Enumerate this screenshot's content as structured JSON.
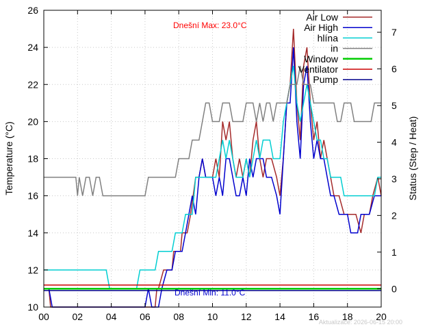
{
  "chart_data": {
    "type": "line",
    "xlabel": "",
    "ylabel_left": "Temperature (°C)",
    "ylabel_right": "Status (Step / Heat)",
    "ylim_left": [
      10,
      26
    ],
    "ylim_right": [
      -0.5,
      7.6
    ],
    "xlim_hours": [
      0,
      20
    ],
    "x_tick_labels": [
      "00",
      "02",
      "04",
      "06",
      "08",
      "10",
      "12",
      "14",
      "16",
      "18",
      "20"
    ],
    "y_left_tick_labels": [
      "10",
      "12",
      "14",
      "16",
      "18",
      "20",
      "22",
      "24",
      "26"
    ],
    "y_right_tick_labels": [
      "0",
      "1",
      "2",
      "3",
      "4",
      "5",
      "6",
      "7"
    ],
    "grid": true,
    "legend_position": "top-right",
    "annotations": {
      "max": "Dnešní Max: 23.0°C",
      "min": "Dnešní Min: 11.0°C",
      "updated": "Aktualizace: 2026-06-15 20:00"
    },
    "series": [
      {
        "name": "Air Low",
        "axis": "left",
        "color": "#a52a2a",
        "points": [
          [
            0,
            11
          ],
          [
            0.3,
            11
          ],
          [
            0.4,
            10
          ],
          [
            6.2,
            10
          ],
          [
            6.6,
            10
          ],
          [
            6.7,
            11
          ],
          [
            6.8,
            11
          ],
          [
            7.1,
            12
          ],
          [
            7.6,
            12
          ],
          [
            7.7,
            13
          ],
          [
            8.1,
            13
          ],
          [
            8.2,
            14
          ],
          [
            8.5,
            14
          ],
          [
            8.7,
            15
          ],
          [
            9.0,
            17
          ],
          [
            9.2,
            17
          ],
          [
            9.4,
            18
          ],
          [
            9.6,
            17
          ],
          [
            10.0,
            17
          ],
          [
            10.2,
            18
          ],
          [
            10.4,
            17
          ],
          [
            10.6,
            20
          ],
          [
            10.8,
            19
          ],
          [
            11.0,
            20
          ],
          [
            11.2,
            18
          ],
          [
            11.4,
            17
          ],
          [
            11.6,
            18
          ],
          [
            11.8,
            17
          ],
          [
            12.0,
            18
          ],
          [
            12.2,
            17
          ],
          [
            12.4,
            19
          ],
          [
            12.6,
            20
          ],
          [
            12.8,
            18
          ],
          [
            13.0,
            17
          ],
          [
            13.2,
            18
          ],
          [
            13.5,
            18
          ],
          [
            13.8,
            17
          ],
          [
            14.0,
            16
          ],
          [
            14.2,
            18
          ],
          [
            14.4,
            21
          ],
          [
            14.6,
            22
          ],
          [
            14.8,
            25
          ],
          [
            15.0,
            21
          ],
          [
            15.2,
            19
          ],
          [
            15.4,
            23
          ],
          [
            15.6,
            24
          ],
          [
            15.8,
            21
          ],
          [
            16.0,
            19
          ],
          [
            16.2,
            20
          ],
          [
            16.4,
            18
          ],
          [
            16.6,
            19
          ],
          [
            16.8,
            18
          ],
          [
            17.0,
            17
          ],
          [
            17.2,
            16
          ],
          [
            17.5,
            16
          ],
          [
            17.8,
            15
          ],
          [
            18.5,
            15
          ],
          [
            18.8,
            14
          ],
          [
            19.0,
            15
          ],
          [
            19.3,
            15
          ],
          [
            19.5,
            16
          ],
          [
            19.8,
            17
          ],
          [
            20.0,
            16
          ]
        ]
      },
      {
        "name": "Air High",
        "axis": "left",
        "color": "#0000cd",
        "points": [
          [
            0,
            11
          ],
          [
            0.3,
            11
          ],
          [
            0.5,
            10
          ],
          [
            6.0,
            10
          ],
          [
            6.2,
            11
          ],
          [
            6.4,
            10
          ],
          [
            6.8,
            10
          ],
          [
            7.0,
            11
          ],
          [
            7.3,
            12
          ],
          [
            7.6,
            12
          ],
          [
            7.8,
            13
          ],
          [
            8.2,
            13
          ],
          [
            8.4,
            14
          ],
          [
            8.6,
            15
          ],
          [
            8.8,
            16
          ],
          [
            9.0,
            15
          ],
          [
            9.2,
            17
          ],
          [
            9.4,
            18
          ],
          [
            9.6,
            17
          ],
          [
            10.0,
            17
          ],
          [
            10.2,
            16
          ],
          [
            10.4,
            17
          ],
          [
            10.6,
            16
          ],
          [
            10.8,
            18
          ],
          [
            11.0,
            18
          ],
          [
            11.2,
            17
          ],
          [
            11.4,
            16
          ],
          [
            11.6,
            16
          ],
          [
            11.8,
            17
          ],
          [
            12.0,
            16
          ],
          [
            12.2,
            18
          ],
          [
            12.4,
            17
          ],
          [
            12.6,
            18
          ],
          [
            13.0,
            18
          ],
          [
            13.2,
            17
          ],
          [
            13.5,
            17
          ],
          [
            13.8,
            16
          ],
          [
            14.0,
            15
          ],
          [
            14.2,
            18
          ],
          [
            14.4,
            21
          ],
          [
            14.6,
            21
          ],
          [
            14.8,
            24
          ],
          [
            15.0,
            20
          ],
          [
            15.2,
            18
          ],
          [
            15.4,
            22
          ],
          [
            15.6,
            23
          ],
          [
            15.8,
            20
          ],
          [
            16.0,
            18
          ],
          [
            16.2,
            19
          ],
          [
            16.4,
            18
          ],
          [
            16.6,
            18
          ],
          [
            16.8,
            17
          ],
          [
            17.0,
            16
          ],
          [
            17.2,
            16
          ],
          [
            17.5,
            15
          ],
          [
            18.0,
            15
          ],
          [
            18.2,
            14
          ],
          [
            18.6,
            14
          ],
          [
            18.8,
            15
          ],
          [
            19.0,
            15
          ],
          [
            19.3,
            15
          ],
          [
            19.6,
            16
          ],
          [
            20.0,
            16
          ]
        ]
      },
      {
        "name": "hlína",
        "axis": "left",
        "color": "#00ced1",
        "points": [
          [
            0,
            12
          ],
          [
            3.7,
            12
          ],
          [
            3.9,
            11
          ],
          [
            5.5,
            11
          ],
          [
            5.7,
            12
          ],
          [
            6.6,
            12
          ],
          [
            6.8,
            13
          ],
          [
            7.6,
            13
          ],
          [
            7.8,
            14
          ],
          [
            8.2,
            14
          ],
          [
            8.4,
            15
          ],
          [
            8.8,
            15
          ],
          [
            9.0,
            17
          ],
          [
            9.6,
            17
          ],
          [
            10.2,
            17
          ],
          [
            10.4,
            18
          ],
          [
            10.6,
            19
          ],
          [
            10.8,
            18
          ],
          [
            11.0,
            19
          ],
          [
            11.2,
            18
          ],
          [
            11.4,
            17
          ],
          [
            11.8,
            17
          ],
          [
            12.0,
            18
          ],
          [
            12.2,
            17
          ],
          [
            12.4,
            18
          ],
          [
            12.6,
            19
          ],
          [
            12.8,
            18
          ],
          [
            13.0,
            19
          ],
          [
            13.4,
            19
          ],
          [
            13.6,
            18
          ],
          [
            13.8,
            18
          ],
          [
            14.0,
            18
          ],
          [
            14.2,
            20
          ],
          [
            14.4,
            21
          ],
          [
            14.6,
            22
          ],
          [
            14.8,
            23
          ],
          [
            15.0,
            21
          ],
          [
            15.2,
            20
          ],
          [
            15.4,
            21
          ],
          [
            15.6,
            22
          ],
          [
            15.8,
            21
          ],
          [
            16.0,
            20
          ],
          [
            16.2,
            19
          ],
          [
            16.4,
            19
          ],
          [
            16.6,
            18
          ],
          [
            16.8,
            18
          ],
          [
            17.0,
            17
          ],
          [
            17.6,
            17
          ],
          [
            17.8,
            16
          ],
          [
            19.0,
            16
          ],
          [
            19.6,
            16
          ],
          [
            19.8,
            17
          ],
          [
            20.0,
            17
          ]
        ]
      },
      {
        "name": "in",
        "axis": "left",
        "color": "#808080",
        "points": [
          [
            0,
            17
          ],
          [
            1.9,
            17
          ],
          [
            2.0,
            16
          ],
          [
            2.1,
            17
          ],
          [
            2.3,
            16
          ],
          [
            2.5,
            17
          ],
          [
            2.7,
            17
          ],
          [
            2.9,
            16
          ],
          [
            3.1,
            17
          ],
          [
            3.3,
            17
          ],
          [
            3.5,
            16
          ],
          [
            6.0,
            16
          ],
          [
            6.2,
            17
          ],
          [
            7.8,
            17
          ],
          [
            8.0,
            18
          ],
          [
            8.6,
            18
          ],
          [
            8.8,
            19
          ],
          [
            9.2,
            19
          ],
          [
            9.4,
            20
          ],
          [
            9.6,
            21
          ],
          [
            9.8,
            21
          ],
          [
            10.0,
            20
          ],
          [
            10.4,
            20
          ],
          [
            10.6,
            21
          ],
          [
            11.0,
            21
          ],
          [
            11.2,
            20
          ],
          [
            11.8,
            20
          ],
          [
            12.0,
            21
          ],
          [
            12.4,
            21
          ],
          [
            12.6,
            20
          ],
          [
            12.8,
            21
          ],
          [
            13.0,
            20
          ],
          [
            13.2,
            21
          ],
          [
            13.4,
            21
          ],
          [
            13.6,
            20
          ],
          [
            13.8,
            21
          ],
          [
            14.4,
            21
          ],
          [
            14.6,
            22
          ],
          [
            15.0,
            22
          ],
          [
            15.2,
            23
          ],
          [
            15.4,
            22
          ],
          [
            15.6,
            22
          ],
          [
            15.8,
            22
          ],
          [
            16.0,
            21
          ],
          [
            17.2,
            21
          ],
          [
            17.4,
            20
          ],
          [
            17.6,
            20
          ],
          [
            17.8,
            21
          ],
          [
            18.2,
            21
          ],
          [
            18.4,
            20
          ],
          [
            19.4,
            20
          ],
          [
            19.6,
            21
          ],
          [
            20.0,
            21
          ]
        ]
      },
      {
        "name": "Window",
        "axis": "right",
        "color": "#00cc00",
        "points": [
          [
            0,
            0
          ],
          [
            20,
            0
          ]
        ]
      },
      {
        "name": "Ventilator",
        "axis": "right",
        "color": "#cc0000",
        "points": [
          [
            0,
            0.1
          ],
          [
            20,
            0.1
          ]
        ]
      },
      {
        "name": "Pump",
        "axis": "right",
        "color": "#00008b",
        "points": [
          [
            0,
            -0.05
          ],
          [
            20,
            -0.05
          ]
        ]
      }
    ]
  }
}
